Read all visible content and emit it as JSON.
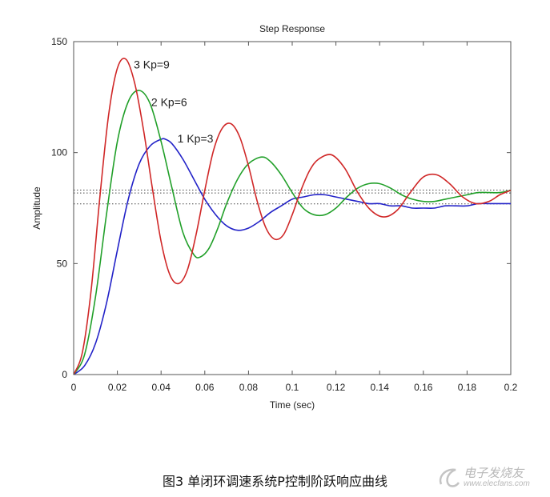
{
  "chart_data": {
    "type": "line",
    "title": "Step Response",
    "xlabel": "Time (sec)",
    "ylabel": "Amplitude",
    "xlim": [
      0,
      0.2
    ],
    "ylim": [
      0,
      150
    ],
    "x_ticks": [
      "0",
      "0.02",
      "0.04",
      "0.06",
      "0.08",
      "0.1",
      "0.12",
      "0.14",
      "0.16",
      "0.18",
      "0.2"
    ],
    "y_ticks": [
      "0",
      "50",
      "100",
      "150"
    ],
    "grid": false,
    "series": [
      {
        "name": "1 Kp=3",
        "color": "#2323c8",
        "label_at": [
          0.0475,
          104.5
        ],
        "x": [
          0,
          0.005,
          0.01,
          0.015,
          0.02,
          0.025,
          0.03,
          0.035,
          0.04,
          0.042,
          0.045,
          0.05,
          0.055,
          0.06,
          0.065,
          0.07,
          0.075,
          0.08,
          0.085,
          0.09,
          0.095,
          0.1,
          0.105,
          0.11,
          0.115,
          0.12,
          0.125,
          0.13,
          0.135,
          0.14,
          0.145,
          0.15,
          0.155,
          0.16,
          0.165,
          0.17,
          0.175,
          0.18,
          0.185,
          0.19,
          0.195,
          0.2
        ],
        "y": [
          0,
          4,
          14,
          32,
          56,
          79,
          95,
          103,
          106,
          106,
          104,
          97,
          88,
          79,
          72,
          67,
          65,
          66,
          69,
          73,
          76,
          79,
          80,
          81,
          81,
          80,
          79,
          78,
          77,
          77,
          76,
          76,
          75,
          75,
          75,
          76,
          76,
          76,
          77,
          77,
          77,
          77
        ]
      },
      {
        "name": "2 Kp=6",
        "color": "#22a02a",
        "label_at": [
          0.0355,
          121
        ],
        "x": [
          0,
          0.005,
          0.01,
          0.015,
          0.02,
          0.025,
          0.03,
          0.035,
          0.04,
          0.045,
          0.05,
          0.055,
          0.058,
          0.062,
          0.066,
          0.07,
          0.075,
          0.08,
          0.086,
          0.09,
          0.095,
          0.1,
          0.105,
          0.11,
          0.115,
          0.12,
          0.125,
          0.13,
          0.135,
          0.14,
          0.145,
          0.15,
          0.155,
          0.16,
          0.165,
          0.17,
          0.175,
          0.18,
          0.185,
          0.19,
          0.195,
          0.2
        ],
        "y": [
          0,
          9,
          35,
          72,
          105,
          123,
          128,
          122,
          105,
          84,
          64,
          54,
          53,
          57,
          66,
          77,
          88,
          95,
          98,
          96,
          90,
          82,
          75,
          72,
          72,
          75,
          80,
          84,
          86,
          86,
          84,
          81,
          79,
          78,
          78,
          79,
          80,
          81,
          82,
          82,
          82,
          83
        ]
      },
      {
        "name": "3 Kp=9",
        "color": "#d02828",
        "label_at": [
          0.0275,
          138
        ],
        "x": [
          0,
          0.004,
          0.008,
          0.012,
          0.016,
          0.02,
          0.024,
          0.028,
          0.032,
          0.036,
          0.04,
          0.044,
          0.048,
          0.052,
          0.056,
          0.06,
          0.064,
          0.068,
          0.072,
          0.076,
          0.08,
          0.084,
          0.088,
          0.092,
          0.096,
          0.1,
          0.104,
          0.108,
          0.112,
          0.118,
          0.124,
          0.13,
          0.136,
          0.142,
          0.148,
          0.154,
          0.16,
          0.166,
          0.172,
          0.178,
          0.184,
          0.19,
          0.195,
          0.2
        ],
        "y": [
          0,
          10,
          38,
          80,
          117,
          138,
          142,
          131,
          110,
          84,
          60,
          45,
          41,
          47,
          63,
          83,
          101,
          111,
          113,
          107,
          94,
          78,
          66,
          61,
          63,
          72,
          83,
          92,
          97,
          99,
          93,
          82,
          74,
          71,
          74,
          82,
          89,
          90,
          86,
          80,
          77,
          78,
          81,
          83
        ]
      }
    ],
    "reference_lines": [
      {
        "y": 76.9,
        "style": "dotted"
      },
      {
        "y": 81.8,
        "style": "dotted"
      },
      {
        "y": 83.1,
        "style": "dotted"
      }
    ]
  },
  "caption": "图3 单闭环调速系统P控制阶跃响应曲线",
  "watermark": {
    "text_cn": "电子发烧友",
    "text_url": "www.elecfans.com"
  }
}
